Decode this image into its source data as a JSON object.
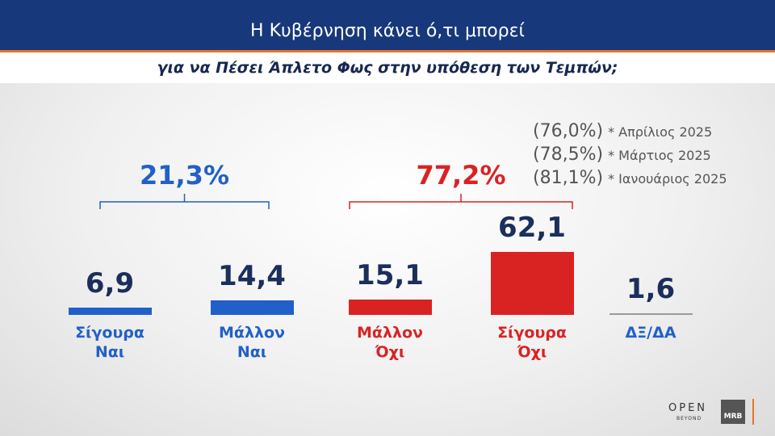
{
  "chart_data": {
    "type": "bar",
    "title": "Η Κυβέρνηση κάνει ό,τι μπορεί",
    "subtitle": "για να Πέσει Άπλετο Φως στην υπόθεση των Τεμπών;",
    "categories": [
      "Σίγουρα Ναι",
      "Μάλλον Ναι",
      "Μάλλον Όχι",
      "Σίγουρα Όχι",
      "ΔΞ/ΔΑ"
    ],
    "values": [
      6.9,
      14.4,
      15.1,
      62.1,
      1.6
    ],
    "value_labels": [
      "6,9",
      "14,4",
      "15,1",
      "62,1",
      "1,6"
    ],
    "colors": [
      "#2160c8",
      "#2160c8",
      "#d92323",
      "#d92323",
      "#9a9a9a"
    ],
    "label_colors": [
      "#2160c8",
      "#2160c8",
      "#d92323",
      "#d92323",
      "#2160c8"
    ],
    "groups": [
      {
        "total": {
          "value": 21.3,
          "label": "21,3%"
        },
        "color": "#2160c8"
      },
      {
        "total": {
          "value": 77.2,
          "label": "77,2%"
        },
        "color": "#d92323"
      }
    ],
    "previous": [
      {
        "total": {
          "value": 76.0,
          "label": "(76,0%)"
        },
        "period": "* Απρίλιος 2025"
      },
      {
        "total": {
          "value": 78.5,
          "label": "(78,5%)"
        },
        "period": "* Μάρτιος 2025"
      },
      {
        "total": {
          "value": 81.1,
          "label": "(81,1%)"
        },
        "period": "* Ιανουάριος 2025"
      }
    ]
  },
  "branding": {
    "open": "OPEN",
    "beyond": "BEYOND",
    "mrb": "MRB"
  }
}
